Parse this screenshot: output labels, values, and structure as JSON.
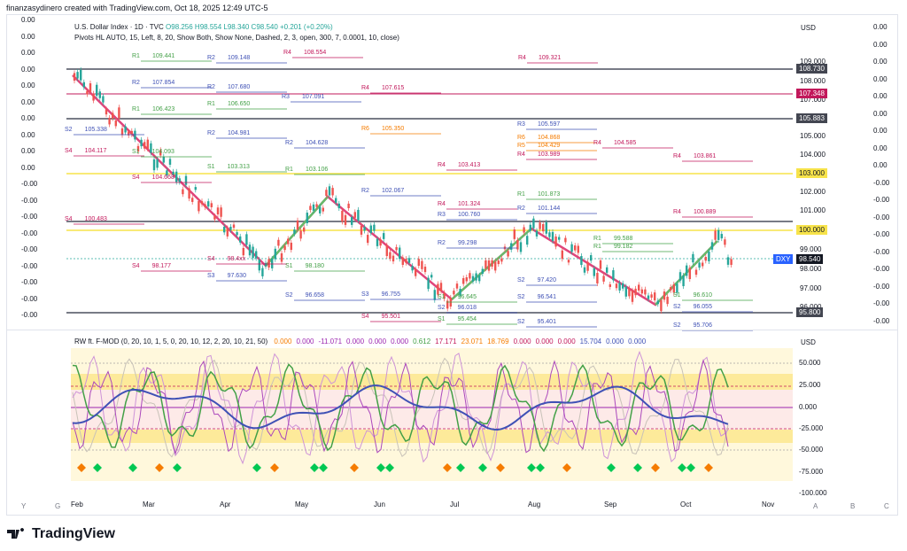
{
  "credit": "finanzasydinero created with TradingView.com, Oct 18, 2025 12:49 UTC-5",
  "main_legend": {
    "symbol": "U.S. Dollar Index · 1D · TVC",
    "ohlc": "O98.256 H98.554 L98.340 C98.540 +0.201 (+0.20%)"
  },
  "indicator_legend": "Pivots HL AUTO, 15, Left, 8, 20, Show Both, Show None, Dashed, 2, 3, open, 300, 7, 0.0001, 10, close)",
  "currency": "USD",
  "price_axis": [
    "109.000",
    "108.000",
    "107.000",
    "106.000",
    "105.000",
    "104.000",
    "103.000",
    "102.000",
    "101.000",
    "100.000",
    "99.000",
    "98.000",
    "97.000",
    "96.000",
    "95.000"
  ],
  "price_tags": [
    {
      "value": "108.730",
      "color": "#434651"
    },
    {
      "value": "107.348",
      "color": "#c2185b"
    },
    {
      "value": "105.883",
      "color": "#434651"
    },
    {
      "value": "103.000",
      "color": "#f7e34a"
    },
    {
      "value": "100.000",
      "color": "#f7e34a"
    },
    {
      "value": "98.540",
      "color": "#131722"
    },
    {
      "value": "95.800",
      "color": "#434651"
    }
  ],
  "dxy_label": "DXY",
  "left_values": [
    "0.00",
    "0.00",
    "0.00",
    "0.00",
    "0.00",
    "0.00",
    "0.00",
    "0.00",
    "0.00",
    "0.00",
    "-0.00",
    "-0.00",
    "-0.00",
    "-0.00",
    "-0.00",
    "-0.00",
    "-0.00",
    "-0.00",
    "-0.00"
  ],
  "right_values": [
    "0.00",
    "0.00",
    "0.00",
    "0.00",
    "0.00",
    "0.00",
    "0.00",
    "0.00",
    "0.00",
    "-0.00",
    "-0.00",
    "-0.00",
    "-0.00",
    "-0.00",
    "-0.00",
    "-0.00",
    "-0.00",
    "-0.00"
  ],
  "x_axis": [
    "Feb",
    "Mar",
    "Apr",
    "May",
    "Jun",
    "Jul",
    "Aug",
    "Sep",
    "Oct",
    "Nov"
  ],
  "pivot_labels": [
    {
      "t": "R4",
      "v": "109.321",
      "c": "#c2185b"
    },
    {
      "t": "R4",
      "v": "107.615",
      "c": "#c2185b"
    },
    {
      "t": "R3",
      "v": "105.597",
      "c": "#3f51b5"
    },
    {
      "t": "R6",
      "v": "104.868",
      "c": "#f57c00"
    },
    {
      "t": "R5",
      "v": "104.429",
      "c": "#f57c00"
    },
    {
      "t": "R4",
      "v": "104.585",
      "c": "#c2185b"
    },
    {
      "t": "R4",
      "v": "103.989",
      "c": "#c2185b"
    },
    {
      "t": "R4",
      "v": "103.861",
      "c": "#c2185b"
    },
    {
      "t": "R4",
      "v": "103.413",
      "c": "#c2185b"
    },
    {
      "t": "R2",
      "v": "104.628",
      "c": "#3f51b5"
    },
    {
      "t": "R2",
      "v": "107.680",
      "c": "#3f51b5"
    },
    {
      "t": "R1",
      "v": "101.873",
      "c": "#43a047"
    },
    {
      "t": "R2",
      "v": "102.067",
      "c": "#3f51b5"
    },
    {
      "t": "R2",
      "v": "101.144",
      "c": "#3f51b5"
    },
    {
      "t": "R4",
      "v": "101.324",
      "c": "#c2185b"
    },
    {
      "t": "R3",
      "v": "100.760",
      "c": "#3f51b5"
    },
    {
      "t": "R2",
      "v": "99.298",
      "c": "#3f51b5"
    },
    {
      "t": "R1",
      "v": "99.588",
      "c": "#43a047"
    },
    {
      "t": "R1",
      "v": "99.182",
      "c": "#43a047"
    },
    {
      "t": "R4",
      "v": "100.889",
      "c": "#c2185b"
    },
    {
      "t": "S1",
      "v": "98.180",
      "c": "#43a047"
    },
    {
      "t": "S4",
      "v": "98.177",
      "c": "#c2185b"
    },
    {
      "t": "S4",
      "v": "98.4xx",
      "c": "#c2185b"
    },
    {
      "t": "S3",
      "v": "97.630",
      "c": "#3f51b5"
    },
    {
      "t": "S2",
      "v": "97.420",
      "c": "#3f51b5"
    },
    {
      "t": "S2",
      "v": "96.658",
      "c": "#3f51b5"
    },
    {
      "t": "S3",
      "v": "96.755",
      "c": "#3f51b5"
    },
    {
      "t": "S1",
      "v": "96.645",
      "c": "#43a047"
    },
    {
      "t": "S2",
      "v": "96.541",
      "c": "#3f51b5"
    },
    {
      "t": "S1",
      "v": "96.610",
      "c": "#43a047"
    },
    {
      "t": "S2",
      "v": "96.055",
      "c": "#3f51b5"
    },
    {
      "t": "S2",
      "v": "96.018",
      "c": "#3f51b5"
    },
    {
      "t": "S4",
      "v": "95.501",
      "c": "#c2185b"
    },
    {
      "t": "S1",
      "v": "95.454",
      "c": "#43a047"
    },
    {
      "t": "S2",
      "v": "95.401",
      "c": "#3f51b5"
    },
    {
      "t": "S2",
      "v": "95.706",
      "c": "#3f51b5"
    },
    {
      "t": "S4",
      "v": "104.668",
      "c": "#c2185b"
    },
    {
      "t": "S1",
      "v": "103.313",
      "c": "#43a047"
    },
    {
      "t": "R1",
      "v": "103.106",
      "c": "#43a047"
    },
    {
      "t": "R2",
      "v": "104.981",
      "c": "#3f51b5"
    },
    {
      "t": "R6",
      "v": "105.350",
      "c": "#f57c00"
    },
    {
      "t": "S2",
      "v": "105.338",
      "c": "#3f51b5"
    },
    {
      "t": "R1",
      "v": "106.650",
      "c": "#43a047"
    },
    {
      "t": "R1",
      "v": "106.423",
      "c": "#43a047"
    },
    {
      "t": "R3",
      "v": "107.091",
      "c": "#3f51b5"
    },
    {
      "t": "R4",
      "v": "108.554",
      "c": "#c2185b"
    },
    {
      "t": "R1",
      "v": "109.441",
      "c": "#43a047"
    },
    {
      "t": "R2",
      "v": "109.148",
      "c": "#3f51b5"
    },
    {
      "t": "R2",
      "v": "107.854",
      "c": "#3f51b5"
    },
    {
      "t": "S4",
      "v": "104.117",
      "c": "#c2185b"
    },
    {
      "t": "S1",
      "v": "104.093",
      "c": "#43a047"
    },
    {
      "t": "S4",
      "v": "100.483",
      "c": "#c2185b"
    }
  ],
  "oscillator": {
    "legend": "RW ft. F-MOD (0, 20, 10, 1, 5, 0, 20, 10, 12, 2, 20, 10, 21, 50)",
    "values": [
      {
        "v": "0.000",
        "c": "#f57c00"
      },
      {
        "v": "0.000",
        "c": "#9c27b0"
      },
      {
        "v": "-11.071",
        "c": "#9c27b0"
      },
      {
        "v": "0.000",
        "c": "#9c27b0"
      },
      {
        "v": "0.000",
        "c": "#9c27b0"
      },
      {
        "v": "0.000",
        "c": "#9c27b0"
      },
      {
        "v": "0.612",
        "c": "#43a047"
      },
      {
        "v": "17.171",
        "c": "#c2185b"
      },
      {
        "v": "23.071",
        "c": "#f57c00"
      },
      {
        "v": "18.769",
        "c": "#f57c00"
      },
      {
        "v": "0.000",
        "c": "#c2185b"
      },
      {
        "v": "0.000",
        "c": "#c2185b"
      },
      {
        "v": "0.000",
        "c": "#c2185b"
      },
      {
        "v": "15.704",
        "c": "#3f51b5"
      },
      {
        "v": "0.000",
        "c": "#3f51b5"
      },
      {
        "v": "0.000",
        "c": "#3f51b5"
      }
    ],
    "axis": [
      "50.000",
      "25.000",
      "0.000",
      "-25.000",
      "-50.000",
      "-75.000",
      "-100.000"
    ]
  },
  "scale_letters": [
    "Y",
    "G",
    "A",
    "B",
    "C"
  ],
  "brand": "TradingView"
}
